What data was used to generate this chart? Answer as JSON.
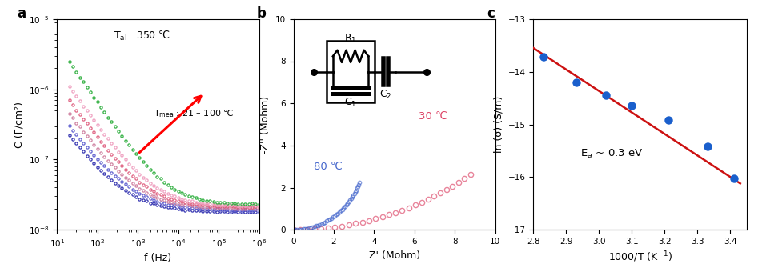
{
  "panel_a": {
    "label": "a",
    "xlabel": "f (Hz)",
    "ylabel": "C (F/cm²)",
    "xlim": [
      10,
      1000000
    ],
    "ylim": [
      1e-08,
      1e-05
    ],
    "background": "white",
    "curve_defs": [
      {
        "c0": 2.2e-07,
        "c_inf": 1.8e-08,
        "exp": 0.75,
        "color": "#2222aa"
      },
      {
        "c0": 3e-07,
        "c_inf": 1.9e-08,
        "exp": 0.75,
        "color": "#5555cc"
      },
      {
        "c0": 4.5e-07,
        "c_inf": 2e-08,
        "exp": 0.78,
        "color": "#cc7799"
      },
      {
        "c0": 7e-07,
        "c_inf": 2.1e-08,
        "exp": 0.8,
        "color": "#dd5577"
      },
      {
        "c0": 1.1e-06,
        "c_inf": 2.2e-08,
        "exp": 0.82,
        "color": "#ee99bb"
      },
      {
        "c0": 2.5e-06,
        "c_inf": 2.3e-08,
        "exp": 0.85,
        "color": "#22aa33"
      }
    ]
  },
  "panel_b": {
    "label": "b",
    "xlabel": "Z' (Mohm)",
    "ylabel": "-Z'' (Mohm)",
    "xlim": [
      0,
      10
    ],
    "ylim": [
      0,
      10
    ],
    "label_30": "30 ℃",
    "label_80": "80 ℃",
    "color_30": "#dd4466",
    "color_80": "#4466cc",
    "background": "white"
  },
  "panel_c": {
    "label": "c",
    "xlabel": "1000/T (K$^{-1}$)",
    "ylabel": "ln (σ) (S/m)",
    "xlim": [
      2.8,
      3.45
    ],
    "ylim": [
      -17,
      -13
    ],
    "annotation": "E$_a$ ~ 0.3 eV",
    "dot_color": "#1a5fcc",
    "line_color": "#cc1111",
    "x_data": [
      2.83,
      2.93,
      3.02,
      3.1,
      3.21,
      3.33,
      3.41
    ],
    "y_data": [
      -13.72,
      -14.2,
      -14.45,
      -14.65,
      -14.92,
      -15.42,
      -16.02
    ],
    "fit_x": [
      2.8,
      3.43
    ],
    "fit_y": [
      -13.55,
      -16.12
    ],
    "background": "white"
  }
}
